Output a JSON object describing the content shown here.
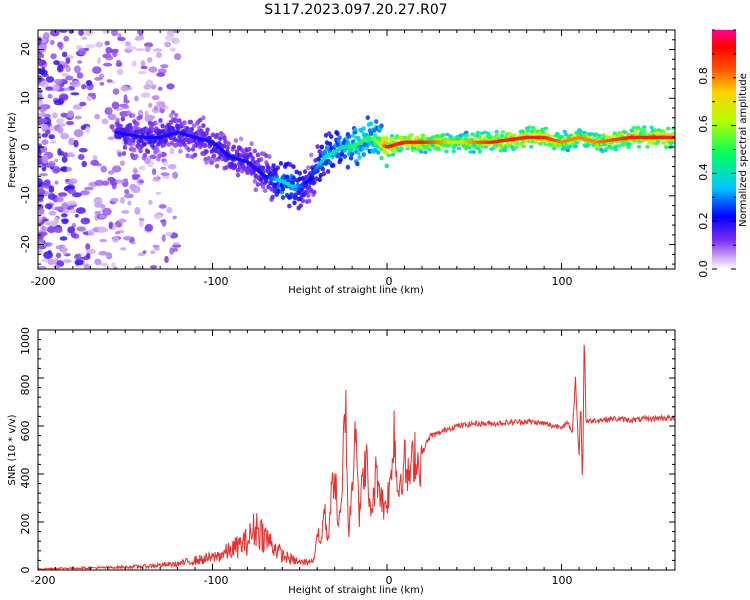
{
  "title": "S117.2023.097.20.27.R07",
  "chart_data": [
    {
      "type": "heatmap",
      "xlabel": "Height of straight line (km)",
      "ylabel": "Frequency (Hz)",
      "xlim": [
        -200,
        165
      ],
      "ylim": [
        -25,
        24
      ],
      "x_ticks": [
        "-200",
        "-100",
        "0",
        "100"
      ],
      "y_ticks": [
        "-20",
        "-10",
        "0",
        "10",
        "20"
      ],
      "colorbar": {
        "label": "Normalized spectral amplitude",
        "ticks": [
          "0.0",
          "0.2",
          "0.4",
          "0.6",
          "0.8"
        ],
        "range": [
          0,
          1
        ],
        "colormap": "rainbow (violet to red to pink)"
      },
      "ridge": {
        "x": [
          -155,
          -140,
          -130,
          -120,
          -110,
          -100,
          -90,
          -80,
          -70,
          -60,
          -55,
          -50,
          -45,
          -40,
          -35,
          -30,
          -25,
          -20,
          -15,
          -10,
          -5,
          0,
          10,
          20,
          40,
          60,
          80,
          90,
          100,
          110,
          120,
          140,
          165
        ],
        "freq": [
          3,
          2,
          2,
          3,
          2,
          1,
          -2,
          -3,
          -6,
          -7,
          -8,
          -8,
          -7,
          -4,
          -2,
          -1,
          0,
          0,
          1,
          2,
          1,
          0,
          1,
          1,
          1,
          1,
          2,
          2,
          1,
          2,
          1,
          2,
          2
        ],
        "amplitude": [
          0.2,
          0.2,
          0.2,
          0.2,
          0.2,
          0.2,
          0.2,
          0.2,
          0.2,
          0.4,
          0.4,
          0.3,
          0.2,
          0.3,
          0.4,
          0.4,
          0.4,
          0.5,
          0.5,
          0.5,
          0.6,
          0.9,
          0.9,
          0.9,
          0.7,
          0.9,
          0.9,
          0.9,
          0.8,
          0.8,
          0.8,
          0.9,
          0.9
        ]
      }
    },
    {
      "type": "line",
      "xlabel": "Height of straight line (km)",
      "ylabel": "SNR (10 * v/v)",
      "xlim": [
        -200,
        165
      ],
      "ylim": [
        0,
        1000
      ],
      "x_ticks": [
        "-200",
        "-100",
        "0",
        "100"
      ],
      "y_ticks": [
        "0",
        "200",
        "400",
        "600",
        "800",
        "1000"
      ],
      "color": "#e8312e",
      "series": [
        {
          "x": [
            -200,
            -180,
            -160,
            -140,
            -120,
            -110,
            -100,
            -90,
            -80,
            -75,
            -70,
            -60,
            -50,
            -42,
            -40,
            -38,
            -36,
            -34,
            -32,
            -30,
            -28,
            -26,
            -24,
            -22,
            -20,
            -18,
            -16,
            -14,
            -12,
            -10,
            -8,
            -6,
            -4,
            -2,
            0,
            2,
            4,
            6,
            8,
            10,
            12,
            14,
            16,
            18,
            20,
            22,
            25,
            30,
            35,
            40,
            50,
            60,
            70,
            80,
            90,
            95,
            100,
            104,
            106,
            108,
            109,
            110,
            111,
            112,
            113,
            114,
            116,
            120,
            130,
            140,
            150,
            160,
            165
          ],
          "y": [
            5,
            8,
            10,
            15,
            25,
            40,
            50,
            80,
            120,
            180,
            140,
            60,
            30,
            40,
            160,
            100,
            260,
            120,
            300,
            420,
            180,
            250,
            750,
            140,
            350,
            700,
            220,
            360,
            480,
            250,
            280,
            420,
            340,
            260,
            300,
            350,
            620,
            320,
            400,
            450,
            380,
            420,
            500,
            430,
            480,
            520,
            560,
            570,
            590,
            600,
            610,
            610,
            615,
            620,
            610,
            600,
            600,
            610,
            560,
            800,
            620,
            460,
            720,
            340,
            1000,
            620,
            620,
            625,
            630,
            625,
            630,
            635,
            630
          ]
        }
      ]
    }
  ]
}
